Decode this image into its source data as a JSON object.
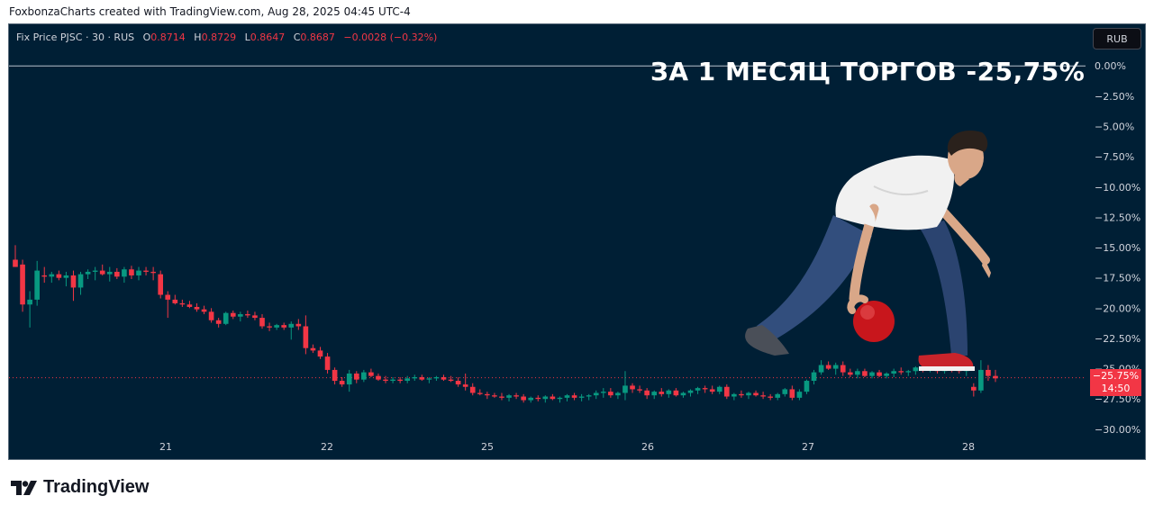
{
  "caption": "FoxbonzaCharts created with TradingView.com, Aug 28, 2025 04:45 UTC-4",
  "legend": {
    "symbol": "Fix Price PJSC · 30 · RUS",
    "open_label": "O",
    "open": "0.8714",
    "high_label": "H",
    "high": "0.8729",
    "low_label": "L",
    "low": "0.8647",
    "close_label": "C",
    "close": "0.8687",
    "change": "−0.0028 (−0.32%)"
  },
  "currency_button": "RUB",
  "headline": "ЗА 1 МЕСЯЦ ТОРГОВ -25,75%",
  "price_tag": {
    "value": "−25.75%",
    "countdown": "14:50"
  },
  "brand": "TradingView",
  "colors": {
    "background": "#001f35",
    "up": "#089981",
    "down": "#f23645",
    "axis_text": "#d1d4dc"
  },
  "illustration": "bowling-man-icon",
  "chart_data": {
    "type": "candlestick",
    "y_unit": "percent",
    "ylim": [
      -31,
      0.5
    ],
    "y_ticks": [
      "0.00%",
      "−2.50%",
      "−5.00%",
      "−7.50%",
      "−10.00%",
      "−12.50%",
      "−15.00%",
      "−17.50%",
      "−20.00%",
      "−22.50%",
      "−25.00%",
      "−27.50%",
      "−30.00%"
    ],
    "y_tick_values": [
      0,
      -2.5,
      -5,
      -7.5,
      -10,
      -12.5,
      -15,
      -17.5,
      -20,
      -22.5,
      -25,
      -27.5,
      -30
    ],
    "x_ticks": [
      "21",
      "22",
      "25",
      "26",
      "27",
      "28"
    ],
    "baseline": 0,
    "last_value": -25.75,
    "candles": [
      [
        -16.0,
        -14.8,
        -16.5,
        -16.6
      ],
      [
        -16.4,
        -16.0,
        -20.3,
        -19.7
      ],
      [
        -19.7,
        -18.6,
        -21.6,
        -19.3
      ],
      [
        -19.3,
        -16.1,
        -19.8,
        -16.9
      ],
      [
        -17.3,
        -16.6,
        -17.9,
        -17.4
      ],
      [
        -17.4,
        -17.0,
        -17.9,
        -17.2
      ],
      [
        -17.2,
        -16.9,
        -17.7,
        -17.5
      ],
      [
        -17.5,
        -17.0,
        -18.2,
        -17.3
      ],
      [
        -17.3,
        -16.9,
        -19.4,
        -18.3
      ],
      [
        -18.3,
        -17.0,
        -18.9,
        -17.2
      ],
      [
        -17.2,
        -16.8,
        -17.6,
        -17.0
      ],
      [
        -17.0,
        -16.6,
        -17.7,
        -16.9
      ],
      [
        -16.9,
        -16.4,
        -17.3,
        -17.2
      ],
      [
        -17.2,
        -16.6,
        -17.8,
        -17.0
      ],
      [
        -17.0,
        -16.7,
        -17.6,
        -17.4
      ],
      [
        -17.4,
        -16.6,
        -17.9,
        -16.8
      ],
      [
        -16.8,
        -16.5,
        -17.6,
        -17.3
      ],
      [
        -17.3,
        -16.6,
        -17.7,
        -16.9
      ],
      [
        -16.9,
        -16.6,
        -17.3,
        -17.0
      ],
      [
        -17.0,
        -16.6,
        -17.7,
        -17.1
      ],
      [
        -17.2,
        -16.9,
        -19.2,
        -18.9
      ],
      [
        -18.9,
        -18.6,
        -20.8,
        -19.3
      ],
      [
        -19.3,
        -18.9,
        -19.7,
        -19.6
      ],
      [
        -19.6,
        -19.3,
        -19.9,
        -19.7
      ],
      [
        -19.7,
        -19.4,
        -20.0,
        -19.9
      ],
      [
        -19.9,
        -19.6,
        -20.3,
        -20.1
      ],
      [
        -20.1,
        -19.8,
        -20.5,
        -20.3
      ],
      [
        -20.3,
        -20.0,
        -21.2,
        -21.0
      ],
      [
        -21.0,
        -20.8,
        -21.6,
        -21.3
      ],
      [
        -21.3,
        -20.3,
        -21.4,
        -20.4
      ],
      [
        -20.4,
        -20.2,
        -20.9,
        -20.7
      ],
      [
        -20.7,
        -20.3,
        -21.1,
        -20.5
      ],
      [
        -20.5,
        -20.2,
        -20.8,
        -20.6
      ],
      [
        -20.6,
        -20.3,
        -21.0,
        -20.8
      ],
      [
        -20.8,
        -20.5,
        -21.7,
        -21.5
      ],
      [
        -21.5,
        -21.2,
        -21.9,
        -21.6
      ],
      [
        -21.6,
        -21.3,
        -21.8,
        -21.4
      ],
      [
        -21.4,
        -21.2,
        -21.8,
        -21.6
      ],
      [
        -21.6,
        -21.1,
        -22.6,
        -21.3
      ],
      [
        -21.3,
        -20.9,
        -21.8,
        -21.5
      ],
      [
        -21.5,
        -20.6,
        -23.8,
        -23.3
      ],
      [
        -23.3,
        -23.0,
        -23.7,
        -23.5
      ],
      [
        -23.5,
        -23.2,
        -24.2,
        -24.0
      ],
      [
        -24.0,
        -23.7,
        -25.4,
        -25.1
      ],
      [
        -25.1,
        -24.9,
        -26.3,
        -26.0
      ],
      [
        -26.0,
        -25.7,
        -26.5,
        -26.3
      ],
      [
        -26.3,
        -25.1,
        -26.9,
        -25.4
      ],
      [
        -25.4,
        -25.2,
        -26.2,
        -25.9
      ],
      [
        -25.9,
        -25.1,
        -26.1,
        -25.3
      ],
      [
        -25.3,
        -25.0,
        -25.7,
        -25.6
      ],
      [
        -25.6,
        -25.4,
        -26.0,
        -25.9
      ],
      [
        -25.9,
        -25.6,
        -26.2,
        -26.0
      ],
      [
        -26.0,
        -25.7,
        -26.2,
        -25.9
      ],
      [
        -25.9,
        -25.7,
        -26.2,
        -26.0
      ],
      [
        -26.0,
        -25.6,
        -26.2,
        -25.8
      ],
      [
        -25.8,
        -25.5,
        -26.0,
        -25.7
      ],
      [
        -25.7,
        -25.5,
        -26.0,
        -25.9
      ],
      [
        -25.9,
        -25.7,
        -26.2,
        -25.8
      ],
      [
        -25.8,
        -25.6,
        -26.0,
        -25.7
      ],
      [
        -25.7,
        -25.5,
        -26.0,
        -25.9
      ],
      [
        -25.9,
        -25.6,
        -26.1,
        -26.0
      ],
      [
        -26.0,
        -25.7,
        -26.5,
        -26.3
      ],
      [
        -26.3,
        -25.4,
        -26.8,
        -26.5
      ],
      [
        -26.5,
        -26.2,
        -27.2,
        -27.0
      ],
      [
        -27.0,
        -26.7,
        -27.2,
        -27.1
      ],
      [
        -27.1,
        -26.9,
        -27.5,
        -27.2
      ],
      [
        -27.2,
        -27.0,
        -27.4,
        -27.3
      ],
      [
        -27.3,
        -27.0,
        -27.6,
        -27.4
      ],
      [
        -27.4,
        -27.1,
        -27.7,
        -27.2
      ],
      [
        -27.2,
        -27.0,
        -27.5,
        -27.3
      ],
      [
        -27.3,
        -27.1,
        -27.8,
        -27.6
      ],
      [
        -27.6,
        -27.3,
        -27.8,
        -27.4
      ],
      [
        -27.4,
        -27.2,
        -27.7,
        -27.5
      ],
      [
        -27.5,
        -27.2,
        -27.8,
        -27.3
      ],
      [
        -27.3,
        -27.1,
        -27.6,
        -27.5
      ],
      [
        -27.5,
        -27.3,
        -27.8,
        -27.4
      ],
      [
        -27.4,
        -27.1,
        -27.7,
        -27.2
      ],
      [
        -27.2,
        -27.0,
        -27.6,
        -27.4
      ],
      [
        -27.4,
        -27.1,
        -27.7,
        -27.3
      ],
      [
        -27.3,
        -27.1,
        -27.6,
        -27.2
      ],
      [
        -27.2,
        -26.8,
        -27.5,
        -27.0
      ],
      [
        -27.0,
        -26.6,
        -27.4,
        -26.9
      ],
      [
        -26.9,
        -26.6,
        -27.4,
        -27.2
      ],
      [
        -27.2,
        -26.9,
        -27.5,
        -27.0
      ],
      [
        -27.0,
        -25.2,
        -27.6,
        -26.4
      ],
      [
        -26.4,
        -26.2,
        -27.0,
        -26.7
      ],
      [
        -26.7,
        -26.4,
        -27.0,
        -26.8
      ],
      [
        -26.8,
        -26.6,
        -27.5,
        -27.2
      ],
      [
        -27.2,
        -26.8,
        -27.5,
        -26.9
      ],
      [
        -26.9,
        -26.6,
        -27.3,
        -27.1
      ],
      [
        -27.1,
        -26.7,
        -27.4,
        -26.8
      ],
      [
        -26.8,
        -26.6,
        -27.3,
        -27.2
      ],
      [
        -27.2,
        -26.9,
        -27.4,
        -27.0
      ],
      [
        -27.0,
        -26.7,
        -27.3,
        -26.8
      ],
      [
        -26.8,
        -26.5,
        -27.1,
        -26.6
      ],
      [
        -26.6,
        -26.4,
        -27.0,
        -26.7
      ],
      [
        -26.7,
        -26.4,
        -27.1,
        -26.9
      ],
      [
        -26.9,
        -26.4,
        -27.1,
        -26.5
      ],
      [
        -26.5,
        -26.3,
        -27.5,
        -27.3
      ],
      [
        -27.3,
        -27.0,
        -27.6,
        -27.1
      ],
      [
        -27.1,
        -26.8,
        -27.4,
        -27.2
      ],
      [
        -27.2,
        -26.9,
        -27.5,
        -27.0
      ],
      [
        -27.0,
        -26.8,
        -27.3,
        -27.2
      ],
      [
        -27.2,
        -26.9,
        -27.5,
        -27.3
      ],
      [
        -27.3,
        -27.1,
        -27.6,
        -27.4
      ],
      [
        -27.4,
        -27.0,
        -27.6,
        -27.1
      ],
      [
        -27.1,
        -26.6,
        -27.3,
        -26.7
      ],
      [
        -26.7,
        -26.4,
        -27.6,
        -27.4
      ],
      [
        -27.4,
        -26.7,
        -27.6,
        -26.9
      ],
      [
        -26.9,
        -25.9,
        -27.1,
        -26.0
      ],
      [
        -26.0,
        -25.1,
        -26.3,
        -25.3
      ],
      [
        -25.3,
        -24.3,
        -25.5,
        -24.7
      ],
      [
        -24.7,
        -24.4,
        -25.1,
        -25.0
      ],
      [
        -25.0,
        -24.5,
        -25.5,
        -24.7
      ],
      [
        -24.7,
        -24.4,
        -25.6,
        -25.3
      ],
      [
        -25.3,
        -25.0,
        -25.7,
        -25.5
      ],
      [
        -25.5,
        -25.0,
        -25.8,
        -25.2
      ],
      [
        -25.2,
        -25.0,
        -25.7,
        -25.6
      ],
      [
        -25.6,
        -25.2,
        -25.8,
        -25.3
      ],
      [
        -25.3,
        -25.1,
        -25.7,
        -25.6
      ],
      [
        -25.6,
        -25.3,
        -25.8,
        -25.4
      ],
      [
        -25.4,
        -25.0,
        -25.7,
        -25.2
      ],
      [
        -25.2,
        -24.9,
        -25.5,
        -25.3
      ],
      [
        -25.3,
        -25.1,
        -25.6,
        -25.2
      ],
      [
        -25.2,
        -24.8,
        -25.5,
        -24.9
      ],
      [
        -24.9,
        -24.7,
        -25.3,
        -25.1
      ],
      [
        -25.1,
        -24.8,
        -25.3,
        -25.0
      ],
      [
        -25.0,
        -24.7,
        -25.4,
        -25.2
      ],
      [
        -25.2,
        -24.9,
        -25.4,
        -25.0
      ],
      [
        -25.0,
        -24.8,
        -25.3,
        -25.1
      ],
      [
        -25.1,
        -24.9,
        -25.4,
        -25.2
      ],
      [
        -25.2,
        -24.9,
        -25.6,
        -25.1
      ],
      [
        -26.5,
        -26.2,
        -27.3,
        -26.8
      ],
      [
        -26.8,
        -24.3,
        -27.0,
        -25.1
      ],
      [
        -25.1,
        -24.7,
        -26.0,
        -25.6
      ],
      [
        -25.6,
        -25.1,
        -26.1,
        -25.8
      ]
    ]
  }
}
